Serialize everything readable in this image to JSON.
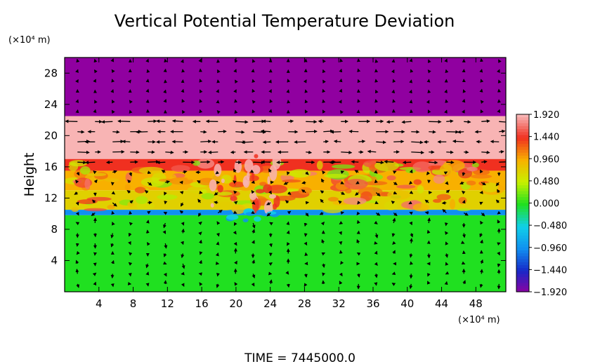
{
  "chart_data": {
    "type": "heatmap",
    "title": "Vertical Potential Temperature Deviation",
    "ylabel": "Height",
    "y_unit": "(×10⁴ m)",
    "x_unit": "(×10⁴ m)",
    "xlim": [
      0,
      51.5
    ],
    "ylim": [
      0,
      30
    ],
    "x_ticks": [
      4,
      8,
      12,
      16,
      20,
      24,
      28,
      32,
      36,
      40,
      44,
      48
    ],
    "y_ticks": [
      4,
      8,
      12,
      16,
      20,
      24,
      28
    ],
    "colorbar": {
      "labels": [
        "1.920",
        "1.440",
        "0.960",
        "0.480",
        "0.000",
        "−0.480",
        "−0.960",
        "−1.440",
        "−1.920"
      ],
      "values": [
        1.92,
        1.44,
        0.96,
        0.48,
        0.0,
        -0.48,
        -0.96,
        -1.44,
        -1.92
      ],
      "colors": [
        "#f8b4b4",
        "#f03020",
        "#f8b000",
        "#c8f000",
        "#20e020",
        "#10d0e8",
        "#1090f0",
        "#1828c8",
        "#9000a0"
      ]
    },
    "layers": [
      {
        "y0": 22.5,
        "y1": 30,
        "level": -1.92
      },
      {
        "y0": 17,
        "y1": 22.5,
        "level": 1.92
      },
      {
        "y0": 15.5,
        "y1": 17,
        "level": 1.44
      },
      {
        "y0": 13,
        "y1": 15.5,
        "level": 0.96
      },
      {
        "y0": 10.5,
        "y1": 13,
        "level": 0.72
      },
      {
        "y0": 9.8,
        "y1": 10.5,
        "level": -0.96
      },
      {
        "y0": 0,
        "y1": 9.8,
        "level": 0.0
      }
    ],
    "time_label": "TIME  =  7445000.0"
  }
}
